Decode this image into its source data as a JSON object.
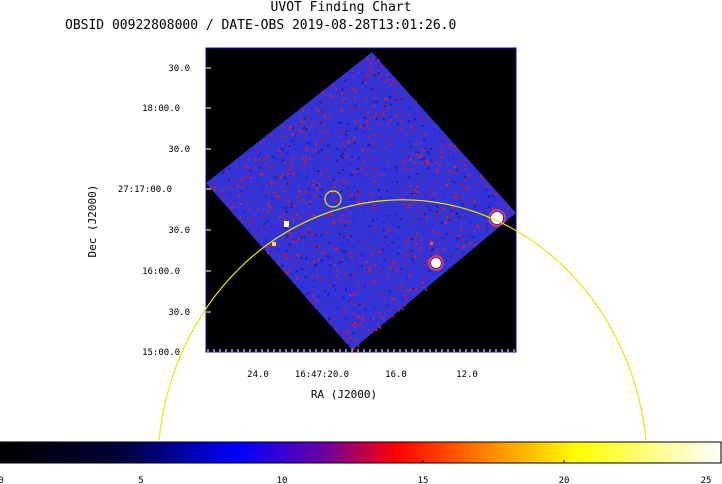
{
  "chart_data": {
    "type": "heatmap",
    "title": "UVOT Finding Chart",
    "subtitle": "OBSID 00922808000 / DATE-OBS 2019-08-28T13:01:26.0",
    "xlabel": "RA (J2000)",
    "ylabel": "Dec (J2000)",
    "x_ticks": [
      "24.0",
      "16:47:20.0",
      "16.0",
      "12.0"
    ],
    "y_ticks": [
      "30.0",
      "18:00.0",
      "30.0",
      "27:17:00.0",
      "30.0",
      "16:00.0",
      "30.0",
      "15:00.0"
    ],
    "colorbar": {
      "range": [
        0,
        25
      ],
      "ticks": [
        "0",
        "5",
        "10",
        "15",
        "20",
        "25"
      ],
      "colors": [
        "#000000",
        "#0000ff",
        "#ff0000",
        "#ffff00",
        "#ffffff"
      ]
    },
    "overlays": [
      "source-circle",
      "error-circle"
    ]
  }
}
